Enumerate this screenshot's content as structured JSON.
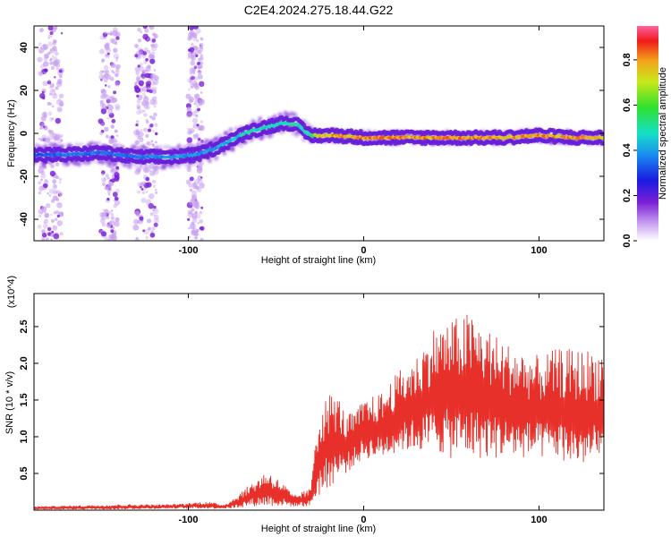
{
  "title": "C2E4.2024.275.18.44.G22",
  "colors": {
    "snr_line": "#e8302a",
    "background": "#ffffff"
  },
  "chart_data": [
    {
      "type": "heatmap",
      "title": "C2E4.2024.275.18.44.G22",
      "xlabel": "Height of straight line (km)",
      "ylabel": "Frequency (Hz)",
      "xlim": [
        -188,
        137
      ],
      "ylim": [
        -50,
        50
      ],
      "xticks": [
        -100,
        0,
        100
      ],
      "yticks": [
        -40,
        -20,
        0,
        20,
        40
      ],
      "colormap": "rainbow (purple-blue-cyan-green-yellow-red)",
      "colorbar": {
        "label": "Normalized spectral amplitude",
        "range": [
          0.0,
          0.95
        ],
        "ticks": [
          0.0,
          0.2,
          0.4,
          0.6,
          0.8
        ]
      },
      "ridge": {
        "x": [
          -188,
          -170,
          -150,
          -130,
          -110,
          -95,
          -85,
          -75,
          -65,
          -55,
          -45,
          -38,
          -34,
          -30,
          -25,
          -15,
          0,
          20,
          40,
          60,
          80,
          100,
          120,
          137
        ],
        "frequency": [
          -10,
          -10,
          -9,
          -11,
          -11,
          -10,
          -7,
          -3,
          1,
          3,
          5,
          4,
          1,
          -1,
          -1,
          -1,
          -2,
          -2,
          -2,
          -2,
          -2,
          -1,
          -2,
          -2
        ],
        "amplitude": [
          0.35,
          0.4,
          0.4,
          0.4,
          0.45,
          0.45,
          0.45,
          0.5,
          0.55,
          0.55,
          0.55,
          0.55,
          0.55,
          0.6,
          0.85,
          0.9,
          0.9,
          0.9,
          0.9,
          0.9,
          0.9,
          0.9,
          0.9,
          0.85
        ]
      }
    },
    {
      "type": "line",
      "xlabel": "Height of straight line (km)",
      "ylabel": "SNR (10 * v/v)",
      "y_multiplier": "(x10^4)",
      "xlim": [
        -188,
        137
      ],
      "ylim": [
        0,
        2.95
      ],
      "xticks": [
        -100,
        0,
        100
      ],
      "yticks": [
        0.5,
        1.0,
        1.5,
        2.0,
        2.5
      ],
      "envelope": {
        "x": [
          -188,
          -140,
          -110,
          -90,
          -80,
          -75,
          -65,
          -55,
          -45,
          -40,
          -35,
          -30,
          -28,
          -25,
          -20,
          -15,
          -10,
          -5,
          0,
          10,
          20,
          30,
          40,
          50,
          60,
          70,
          80,
          90,
          100,
          110,
          120,
          130,
          137
        ],
        "low": [
          0.01,
          0.01,
          0.02,
          0.02,
          0.02,
          0.02,
          0.05,
          0.05,
          0.05,
          0.05,
          0.05,
          0.05,
          0.1,
          0.2,
          0.3,
          0.4,
          0.5,
          0.6,
          0.7,
          0.7,
          0.8,
          0.8,
          0.8,
          0.7,
          0.7,
          0.7,
          0.7,
          0.7,
          0.7,
          0.7,
          0.6,
          0.6,
          0.6
        ],
        "high": [
          0.05,
          0.08,
          0.08,
          0.12,
          0.08,
          0.15,
          0.35,
          0.55,
          0.35,
          0.2,
          0.25,
          0.3,
          1.05,
          1.4,
          1.6,
          1.6,
          1.3,
          1.35,
          1.5,
          1.6,
          1.9,
          2.1,
          2.5,
          2.6,
          2.7,
          2.5,
          2.3,
          2.2,
          2.1,
          2.2,
          2.2,
          2.2,
          2.2
        ]
      }
    }
  ]
}
